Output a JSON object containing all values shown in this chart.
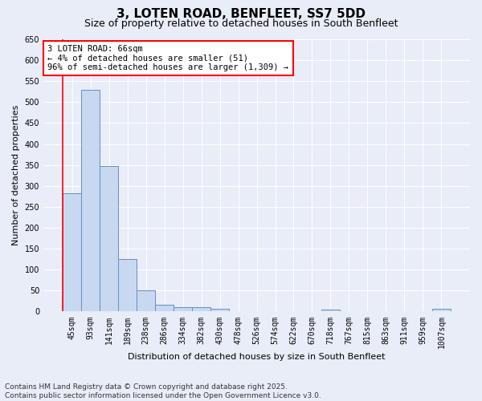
{
  "title": "3, LOTEN ROAD, BENFLEET, SS7 5DD",
  "subtitle": "Size of property relative to detached houses in South Benfleet",
  "xlabel": "Distribution of detached houses by size in South Benfleet",
  "ylabel": "Number of detached properties",
  "categories": [
    "45sqm",
    "93sqm",
    "141sqm",
    "189sqm",
    "238sqm",
    "286sqm",
    "334sqm",
    "382sqm",
    "430sqm",
    "478sqm",
    "526sqm",
    "574sqm",
    "622sqm",
    "670sqm",
    "718sqm",
    "767sqm",
    "815sqm",
    "863sqm",
    "911sqm",
    "959sqm",
    "1007sqm"
  ],
  "values": [
    283,
    530,
    348,
    125,
    50,
    17,
    11,
    11,
    7,
    0,
    0,
    0,
    0,
    0,
    5,
    0,
    0,
    0,
    0,
    0,
    6
  ],
  "bar_color": "#c8d8f0",
  "bar_edge_color": "#6090c0",
  "ylim": [
    0,
    650
  ],
  "yticks": [
    0,
    50,
    100,
    150,
    200,
    250,
    300,
    350,
    400,
    450,
    500,
    550,
    600,
    650
  ],
  "annotation_line1": "3 LOTEN ROAD: 66sqm",
  "annotation_line2": "← 4% of detached houses are smaller (51)",
  "annotation_line3": "96% of semi-detached houses are larger (1,309) →",
  "background_color": "#e8edf8",
  "grid_color": "#ffffff",
  "footnote": "Contains HM Land Registry data © Crown copyright and database right 2025.\nContains public sector information licensed under the Open Government Licence v3.0.",
  "title_fontsize": 11,
  "subtitle_fontsize": 9,
  "xlabel_fontsize": 8,
  "ylabel_fontsize": 8,
  "tick_fontsize": 7,
  "annotation_fontsize": 7.5,
  "footnote_fontsize": 6.5
}
